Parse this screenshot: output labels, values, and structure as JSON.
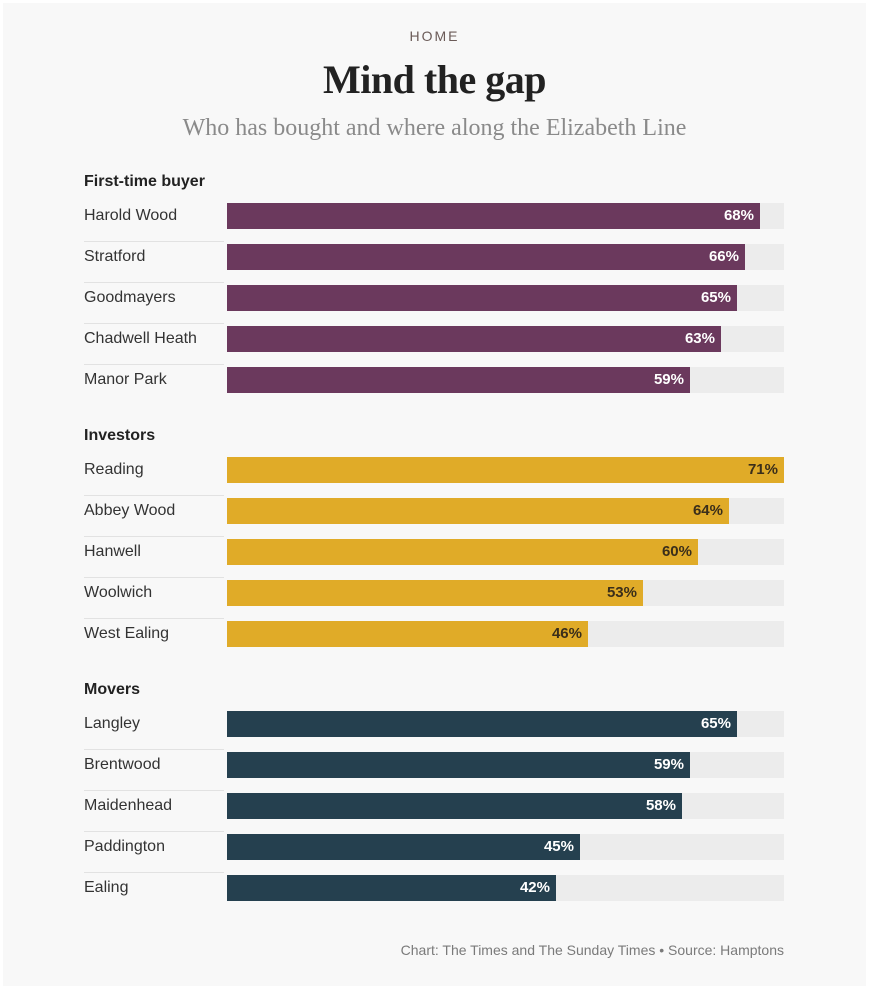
{
  "header": {
    "section": "HOME",
    "title": "Mind the gap",
    "subtitle": "Who has bought and where along the Elizabeth Line"
  },
  "chart_data": {
    "type": "bar",
    "orientation": "horizontal",
    "title": "Mind the gap",
    "subtitle": "Who has bought and where along the Elizabeth Line",
    "xlim": [
      0,
      71
    ],
    "groups": [
      {
        "name": "First-time buyer",
        "color": "#6b395d",
        "label_color": "#ffffff",
        "categories": [
          "Harold Wood",
          "Stratford",
          "Goodmayers",
          "Chadwell Heath",
          "Manor Park"
        ],
        "values": [
          68,
          66,
          65,
          63,
          59
        ],
        "labels": [
          "68%",
          "66%",
          "65%",
          "63%",
          "59%"
        ]
      },
      {
        "name": "Investors",
        "color": "#e0ab28",
        "label_color": "#3a2e1a",
        "categories": [
          "Reading",
          "Abbey Wood",
          "Hanwell",
          "Woolwich",
          "West Ealing"
        ],
        "values": [
          71,
          64,
          60,
          53,
          46
        ],
        "labels": [
          "71%",
          "64%",
          "60%",
          "53%",
          "46%"
        ]
      },
      {
        "name": "Movers",
        "color": "#25404f",
        "label_color": "#ffffff",
        "categories": [
          "Langley",
          "Brentwood",
          "Maidenhead",
          "Paddington",
          "Ealing"
        ],
        "values": [
          65,
          59,
          58,
          45,
          42
        ],
        "labels": [
          "65%",
          "59%",
          "58%",
          "45%",
          "42%"
        ]
      }
    ]
  },
  "footer": {
    "credit": "Chart: The Times and The Sunday Times • Source: Hamptons"
  }
}
